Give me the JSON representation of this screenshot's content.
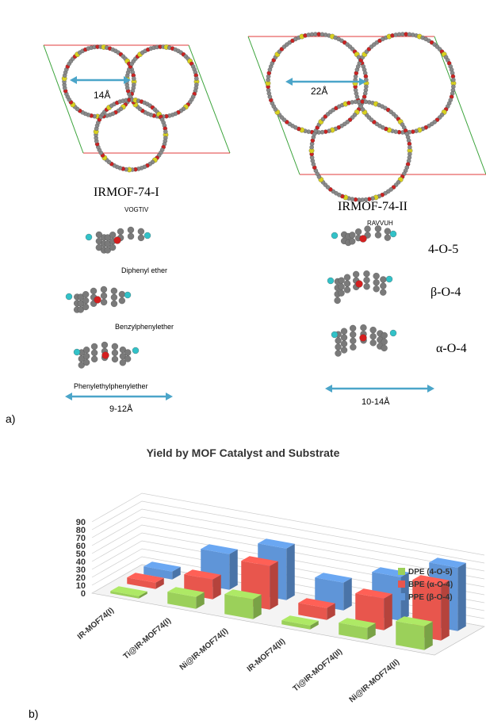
{
  "panel_a": {
    "label": "a)",
    "mof_left": {
      "name": "IRMOF-74-I",
      "code": "VOGTIV",
      "pore": "14Å"
    },
    "mof_right": {
      "name": "IRMOF-74-II",
      "code": "RAVVUH",
      "pore": "22Å"
    },
    "molecules_left": [
      "Diphenyl ether",
      "Benzylphenylether",
      "Phenylethylphenylether"
    ],
    "range_left": "9-12Å",
    "molecules_right": [
      "4-O-5",
      "β-O-4",
      "α-O-4"
    ],
    "range_right": "10-14Å"
  },
  "panel_b": {
    "label": "b)"
  },
  "colors": {
    "green": "#9bd05a",
    "red": "#e8564d",
    "blue": "#5f95d8",
    "arrow": "#4ba5c9"
  },
  "chart_data": {
    "type": "bar",
    "title": "Yield by MOF Catalyst and Substrate",
    "categories": [
      "IR-MOF74(I)",
      "Ti@IR-MOF74(I)",
      "Ni@IR-MOF74(I)",
      "IR-MOF74(II)",
      "Ti@IR-MOF74(II)",
      "Ni@IR-MOF74(II)"
    ],
    "series": [
      {
        "name": "DPE (4-O-5)",
        "values": [
          3,
          15,
          25,
          5,
          15,
          30
        ]
      },
      {
        "name": "BPE (α-O-4)",
        "values": [
          8,
          25,
          55,
          15,
          40,
          70
        ]
      },
      {
        "name": "PPE (β-O-4)",
        "values": [
          10,
          45,
          65,
          35,
          55,
          80
        ]
      }
    ],
    "ylim": [
      0,
      90
    ],
    "yticks": [
      0,
      10,
      20,
      30,
      40,
      50,
      60,
      70,
      80,
      90
    ],
    "legend": "right",
    "grid": true
  }
}
